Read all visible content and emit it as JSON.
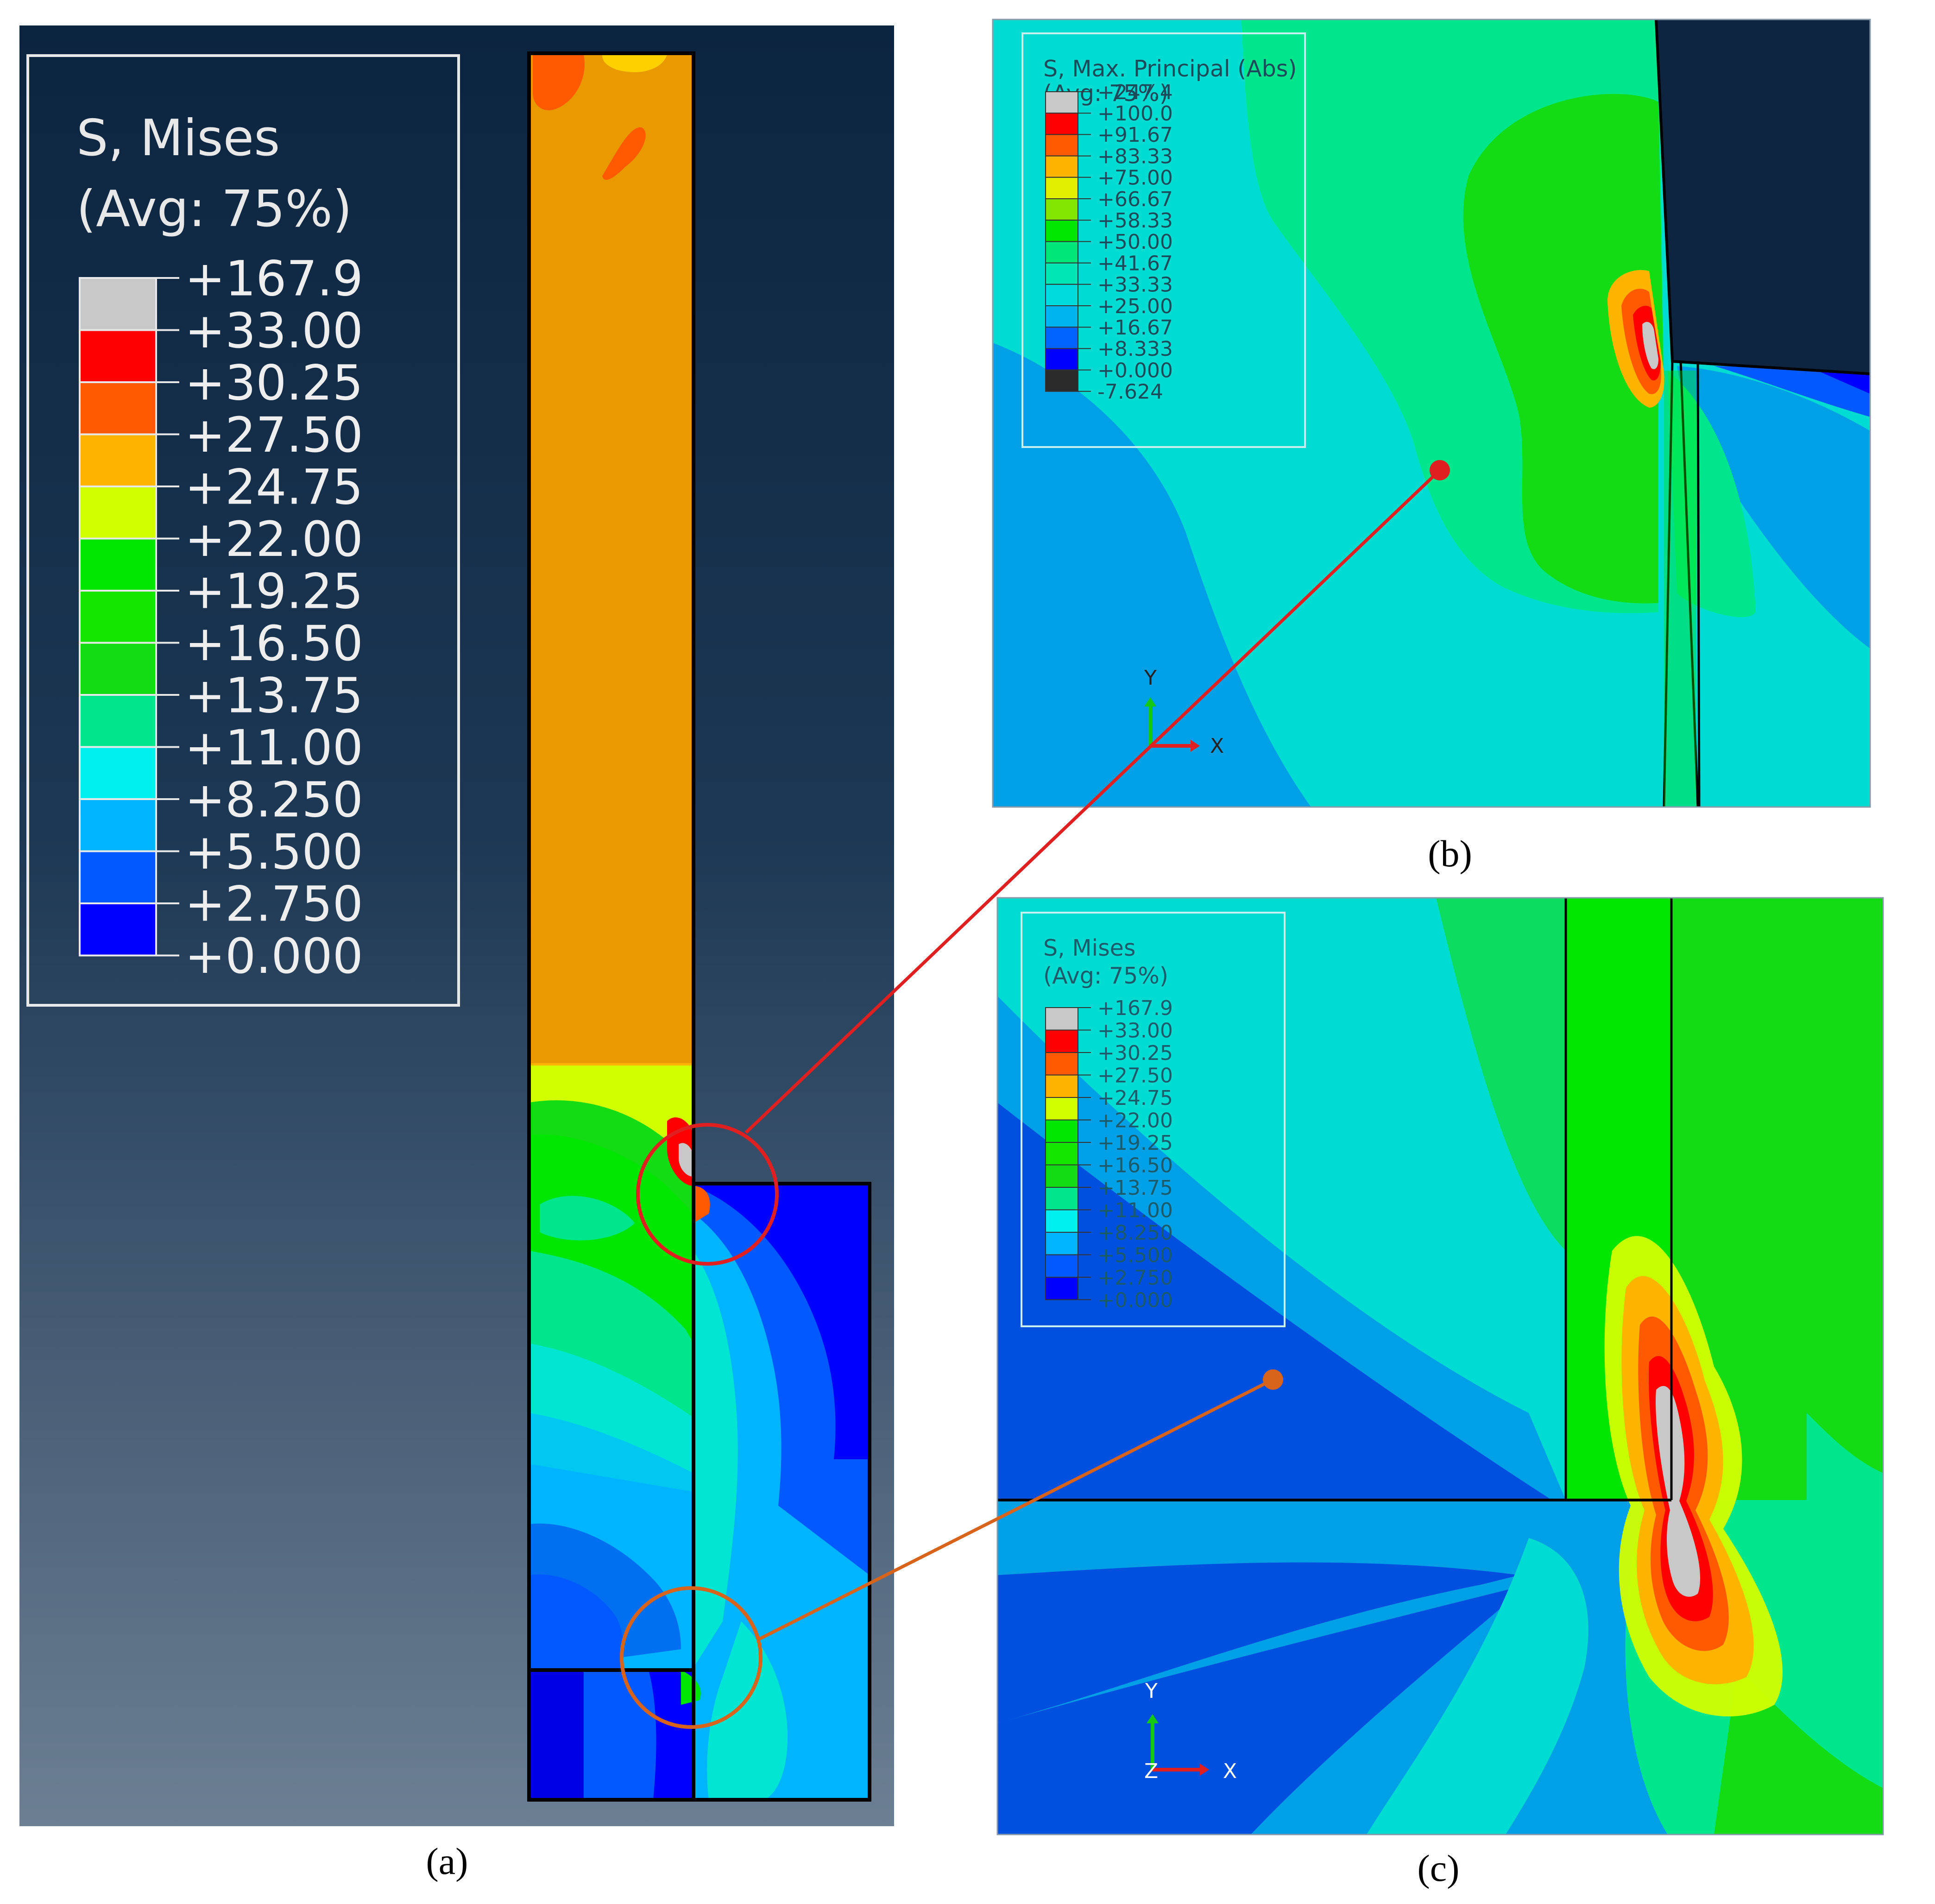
{
  "panels": {
    "a": {
      "caption": "(a)",
      "legend": {
        "title_line1": "S, Mises",
        "title_line2": "(Avg: 75%)",
        "values": [
          "+167.9",
          "+33.00",
          "+30.25",
          "+27.50",
          "+24.75",
          "+22.00",
          "+19.25",
          "+16.50",
          "+13.75",
          "+11.00",
          "+8.250",
          "+5.500",
          "+2.750",
          "+0.000"
        ]
      }
    },
    "b": {
      "caption": "(b)",
      "legend": {
        "title_line1": "S, Max. Principal (Abs)",
        "title_line2": "(Avg: 75%)",
        "values": [
          "+247.4",
          "+100.0",
          "+91.67",
          "+83.33",
          "+75.00",
          "+66.67",
          "+58.33",
          "+50.00",
          "+41.67",
          "+33.33",
          "+25.00",
          "+16.67",
          "+8.333",
          "+0.000",
          "-7.624"
        ]
      },
      "axis": {
        "y": "Y",
        "x": "X"
      }
    },
    "c": {
      "caption": "(c)",
      "legend": {
        "title_line1": "S, Mises",
        "title_line2": "(Avg: 75%)",
        "values": [
          "+167.9",
          "+33.00",
          "+30.25",
          "+27.50",
          "+24.75",
          "+22.00",
          "+19.25",
          "+16.50",
          "+13.75",
          "+11.00",
          "+8.250",
          "+5.500",
          "+2.750",
          "+0.000"
        ]
      },
      "axis": {
        "y": "Y",
        "z": "Z",
        "x": "X"
      }
    }
  },
  "colors": {
    "mises_scale": [
      "#c8c8c8",
      "#ff0000",
      "#ff5a00",
      "#ffb400",
      "#d2ff00",
      "#00e600",
      "#14e600",
      "#14dc14",
      "#00e68c",
      "#00f0f0",
      "#00b4ff",
      "#005aff",
      "#0000ff"
    ],
    "principal_scale": [
      "#c8c8c8",
      "#ff0000",
      "#ff5a00",
      "#ffb400",
      "#e1f000",
      "#82e600",
      "#00e600",
      "#00e678",
      "#00e6b4",
      "#00dcdc",
      "#00b4f0",
      "#0064ff",
      "#0000ff",
      "#2b2b2b"
    ],
    "zoom_b_line": "#e02020",
    "zoom_c_line": "#d8631a"
  }
}
